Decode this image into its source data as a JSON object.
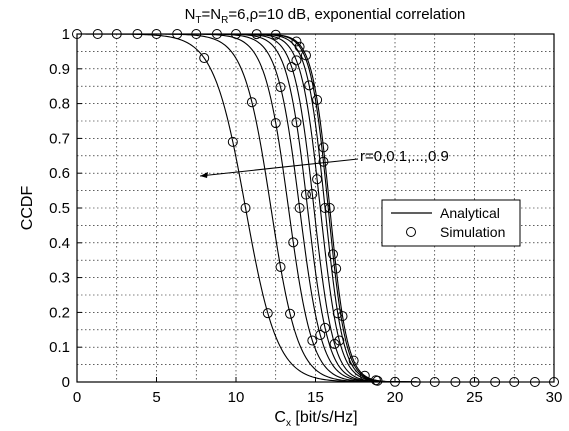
{
  "chart_data": {
    "type": "line",
    "title": {
      "n_t": "N",
      "n_t_sub": "T",
      "eq": "=",
      "n_r": "N",
      "n_r_sub": "R",
      "rest": "=6,ρ=10 dB, exponential correlation"
    },
    "xlabel": {
      "main": "C",
      "sub": "x",
      "rest": " [bit/s/Hz]"
    },
    "ylabel": "CCDF",
    "xlim": [
      0,
      30
    ],
    "ylim": [
      0,
      1
    ],
    "xticks": [
      "0",
      "5",
      "10",
      "15",
      "20",
      "25",
      "30"
    ],
    "yticks": [
      "0",
      "0.1",
      "0.2",
      "0.3",
      "0.4",
      "0.5",
      "0.6",
      "0.7",
      "0.8",
      "0.9",
      "1"
    ],
    "grid": true,
    "annotation": "r=0,0.1,...,0.9",
    "legend": {
      "placement": "right",
      "entries": [
        {
          "label": "Analytical",
          "marker": "line"
        },
        {
          "label": "Simulation",
          "marker": "circle"
        }
      ]
    },
    "series": [
      {
        "r": "0",
        "median": 15.9,
        "spread": 0.55,
        "circles": [
          0,
          1.3,
          2.5,
          3.8,
          5,
          6.3,
          7.5,
          8.8,
          10,
          11.3,
          12.5,
          13.8,
          14.4,
          15.1,
          15.5,
          15.9,
          16.3,
          16.7,
          17.4,
          18.1,
          18.8,
          20,
          21.3,
          22.5,
          23.8,
          25,
          26.3,
          27.5,
          28.8,
          30
        ]
      },
      {
        "r": "0.1",
        "median": 15.8,
        "spread": 0.55,
        "circles": [
          14.0,
          15.5,
          16.1,
          18.9
        ]
      },
      {
        "r": "0.2",
        "median": 15.6,
        "spread": 0.57,
        "circles": [
          14.6,
          15.6,
          16.4
        ]
      },
      {
        "r": "0.3",
        "median": 15.3,
        "spread": 0.6,
        "circles": [
          13.8,
          15.1,
          16.5
        ]
      },
      {
        "r": "0.4",
        "median": 14.9,
        "spread": 0.62,
        "circles": [
          13.5,
          14.8,
          16.2
        ]
      },
      {
        "r": "0.5",
        "median": 14.5,
        "spread": 0.65,
        "circles": [
          13.8,
          14.4,
          15.6
        ]
      },
      {
        "r": "0.6",
        "median": 14.0,
        "spread": 0.7,
        "circles": [
          12.8,
          14.0,
          15.3
        ]
      },
      {
        "r": "0.7",
        "median": 13.3,
        "spread": 0.75,
        "circles": [
          12.5,
          13.6,
          14.8
        ]
      },
      {
        "r": "0.8",
        "median": 12.2,
        "spread": 0.85,
        "circles": [
          11.0,
          12.8,
          13.4
        ]
      },
      {
        "r": "0.9",
        "median": 10.6,
        "spread": 1.0,
        "circles": [
          8.0,
          9.8,
          10.6,
          12.0
        ]
      }
    ]
  }
}
